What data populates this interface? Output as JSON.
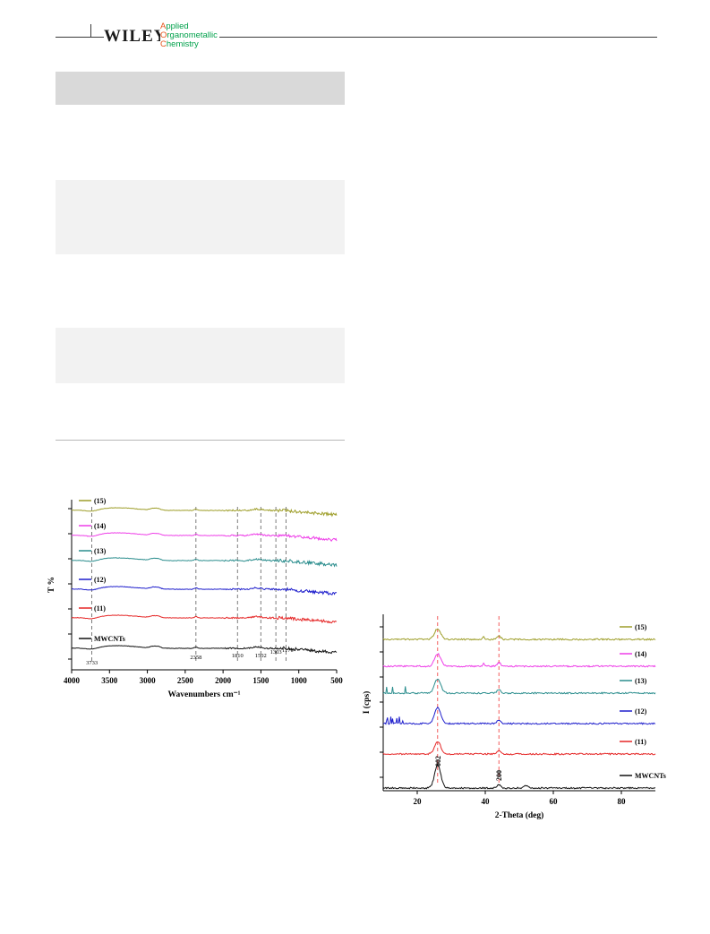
{
  "header": {
    "publisher": "WILEY",
    "journal_lines": [
      {
        "cap": "A",
        "rest": "pplied"
      },
      {
        "cap": "O",
        "rest": "rganometallic"
      },
      {
        "cap": "C",
        "rest": "hemistry"
      }
    ],
    "colors": {
      "journal_green": "#00a14b",
      "journal_orange": "#e5531a"
    }
  },
  "chart_data": [
    {
      "type": "line",
      "xlabel": "Wavenumbers cm⁻¹",
      "ylabel": "T %",
      "xlim": [
        4000,
        500
      ],
      "x_reversed": true,
      "x_ticks": [
        4000,
        3500,
        3000,
        2500,
        2000,
        1500,
        1000,
        500
      ],
      "y_ticks_labeled": false,
      "legend": [
        "(15)",
        "(14)",
        "(13)",
        "(12)",
        "(11)",
        "MWCNTs"
      ],
      "series": [
        {
          "name": "(15)",
          "color": "#9e9e2a"
        },
        {
          "name": "(14)",
          "color": "#ee3ee8"
        },
        {
          "name": "(13)",
          "color": "#2a8d8d"
        },
        {
          "name": "(12)",
          "color": "#1d1dcc"
        },
        {
          "name": "(11)",
          "color": "#e52626"
        },
        {
          "name": "MWCNTs",
          "color": "#111111"
        }
      ],
      "reference_lines": [
        3733,
        2358,
        1810,
        1502,
        1303,
        1170
      ],
      "annotations": [
        "3733",
        "2358",
        "1810",
        "1502",
        "1303",
        "1170"
      ]
    },
    {
      "type": "line",
      "xlabel": "2-Theta (deg)",
      "ylabel": "I (cps)",
      "xlim": [
        10,
        90
      ],
      "x_ticks": [
        20,
        40,
        60,
        80
      ],
      "y_ticks_labeled": false,
      "legend": [
        "(15)",
        "(14)",
        "(13)",
        "(12)",
        "(11)",
        "MWCNTs"
      ],
      "series": [
        {
          "name": "(15)",
          "color": "#9e9e2a"
        },
        {
          "name": "(14)",
          "color": "#ee3ee8"
        },
        {
          "name": "(13)",
          "color": "#2a8d8d"
        },
        {
          "name": "(12)",
          "color": "#1d1dcc"
        },
        {
          "name": "(11)",
          "color": "#e52626"
        },
        {
          "name": "MWCNTs",
          "color": "#111111"
        }
      ],
      "reference_lines": [
        26,
        44
      ],
      "peak_labels": [
        "002",
        "200"
      ]
    }
  ]
}
